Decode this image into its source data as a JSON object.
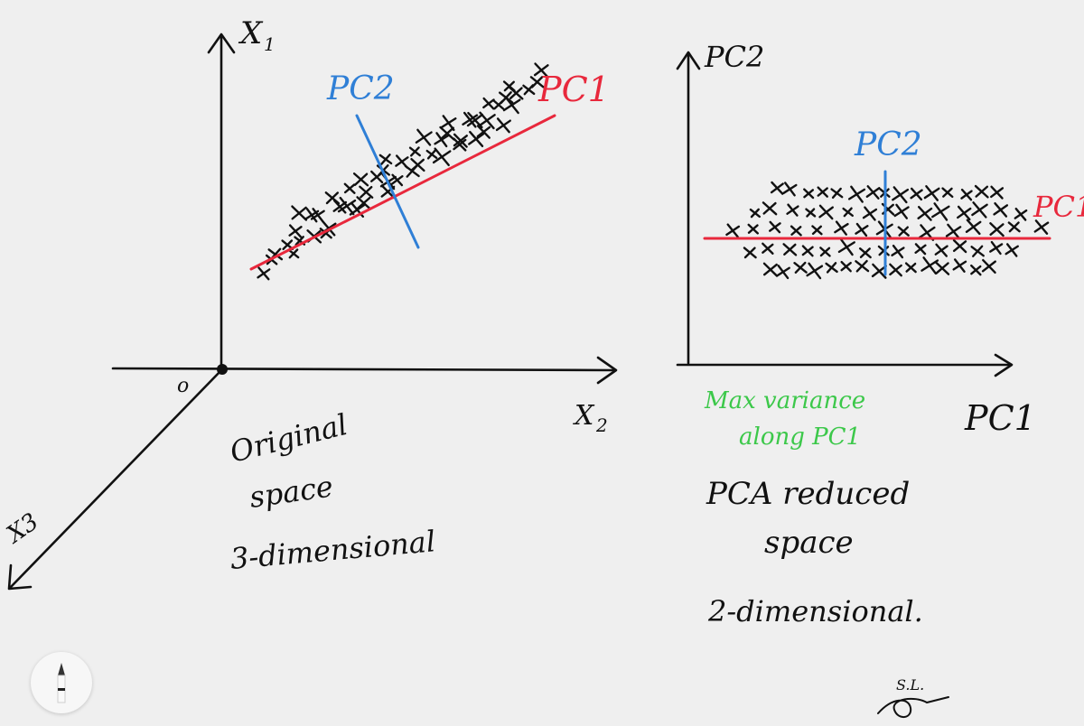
{
  "left_panel": {
    "axis_x1": "X",
    "axis_x1_sub": "1",
    "axis_x2": "X",
    "axis_x2_sub": "2",
    "axis_x3": "X3",
    "origin": "o",
    "pc1_label": "PC1",
    "pc2_label": "PC2",
    "caption_lines": [
      "Original",
      "space",
      "3-dimensional"
    ]
  },
  "right_panel": {
    "axis_y": "PC2",
    "axis_x": "PC1",
    "pc1_label": "PC1",
    "pc2_label": "PC2",
    "note_lines": [
      "Max variance",
      "along PC1"
    ],
    "caption_lines": [
      "PCA reduced",
      "space",
      "2-dimensional."
    ]
  },
  "signature": "S.L.",
  "colors": {
    "ink": "#111111",
    "pc1": "#e8283c",
    "pc2": "#2f7fd6",
    "note": "#3cc84a",
    "background": "#efefef"
  },
  "icons": {
    "tool_button": "pencil-icon"
  }
}
